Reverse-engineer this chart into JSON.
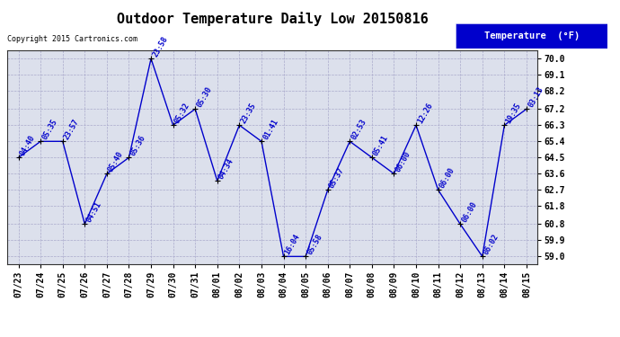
{
  "title": "Outdoor Temperature Daily Low 20150816",
  "copyright": "Copyright 2015 Cartronics.com",
  "legend_label": "Temperature  (°F)",
  "dates": [
    "07/23",
    "07/24",
    "07/25",
    "07/26",
    "07/27",
    "07/28",
    "07/29",
    "07/30",
    "07/31",
    "08/01",
    "08/02",
    "08/03",
    "08/04",
    "08/05",
    "08/06",
    "08/07",
    "08/08",
    "08/09",
    "08/10",
    "08/11",
    "08/12",
    "08/13",
    "08/14",
    "08/15"
  ],
  "values": [
    64.5,
    65.4,
    65.4,
    60.8,
    63.6,
    64.5,
    70.0,
    66.3,
    67.2,
    63.2,
    66.3,
    65.4,
    59.0,
    59.0,
    62.7,
    65.4,
    64.5,
    63.6,
    66.3,
    62.7,
    60.8,
    59.0,
    66.3,
    67.2
  ],
  "times": [
    "04:40",
    "05:35",
    "23:57",
    "04:51",
    "05:40",
    "05:36",
    "23:58",
    "05:32",
    "05:30",
    "04:34",
    "23:35",
    "01:41",
    "16:04",
    "05:58",
    "05:37",
    "02:53",
    "05:41",
    "06:00",
    "12:26",
    "06:00",
    "06:00",
    "06:02",
    "19:35",
    "03:13"
  ],
  "line_color": "#0000cc",
  "marker_color": "#000000",
  "bg_color": "#ffffff",
  "plot_bg_color": "#dce0ec",
  "grid_color": "#aaaacc",
  "yticks": [
    59.0,
    59.9,
    60.8,
    61.8,
    62.7,
    63.6,
    64.5,
    65.4,
    66.3,
    67.2,
    68.2,
    69.1,
    70.0
  ],
  "ylim_min": 58.55,
  "ylim_max": 70.45,
  "title_fontsize": 11,
  "annot_fontsize": 6,
  "tick_fontsize": 7,
  "legend_bg": "#0000cc",
  "legend_fg": "#ffffff",
  "legend_fontsize": 7.5
}
